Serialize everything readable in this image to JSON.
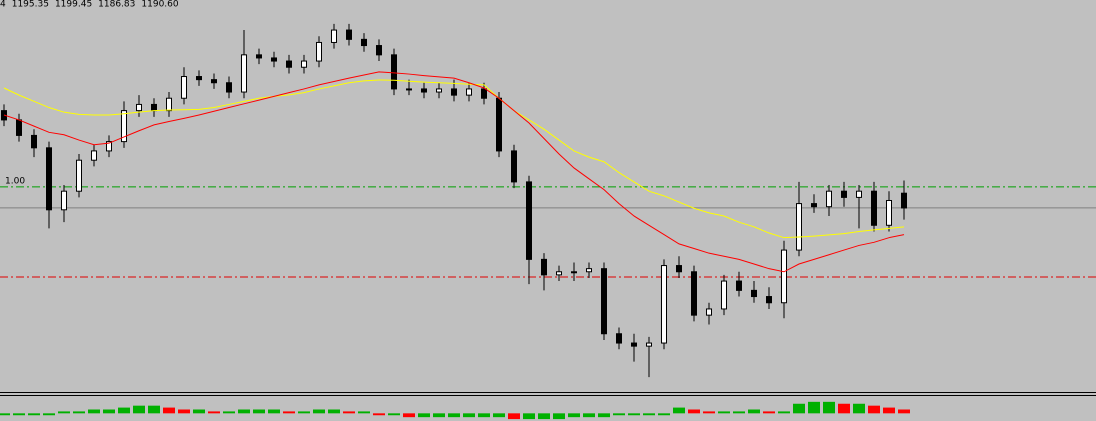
{
  "chart_data": {
    "type": "candlestick",
    "header": [
      "4",
      "1195.35",
      "1199.45",
      "1186.83",
      "1190.60"
    ],
    "ylim": [
      1131.2,
      1257.7
    ],
    "candles": {
      "open": [
        1222,
        1219,
        1214,
        1210,
        1190,
        1196,
        1206,
        1209,
        1212,
        1222,
        1224,
        1222,
        1226,
        1233,
        1232,
        1231,
        1228,
        1240,
        1239,
        1238,
        1236,
        1238,
        1244,
        1248,
        1245,
        1243,
        1240,
        1229,
        1229,
        1228,
        1229,
        1227,
        1229,
        1226,
        1209,
        1199,
        1174,
        1169,
        1170,
        1170,
        1171,
        1150,
        1147,
        1146,
        1147,
        1172,
        1170,
        1156,
        1158,
        1167,
        1164,
        1162,
        1160,
        1177,
        1192,
        1191,
        1196,
        1194,
        1196,
        1185,
        1195.35
      ],
      "high": [
        1224,
        1221,
        1216,
        1212,
        1198,
        1208,
        1211,
        1214,
        1225,
        1227,
        1226,
        1228,
        1236,
        1235,
        1234,
        1233,
        1248,
        1242,
        1241,
        1240,
        1240,
        1246,
        1250,
        1250,
        1247,
        1245,
        1242,
        1232,
        1231,
        1231,
        1232,
        1231,
        1231,
        1228,
        1211,
        1201,
        1176,
        1172,
        1173,
        1173,
        1173,
        1152,
        1150,
        1149,
        1174,
        1175,
        1172,
        1160,
        1169,
        1170,
        1167,
        1165,
        1180,
        1199,
        1195,
        1198,
        1199,
        1198,
        1199,
        1196,
        1199.45
      ],
      "low": [
        1217,
        1212,
        1207,
        1184,
        1186,
        1194,
        1204,
        1207,
        1210,
        1220,
        1220,
        1220,
        1224,
        1230,
        1229,
        1226,
        1226,
        1237,
        1236,
        1234,
        1234,
        1236,
        1242,
        1243,
        1241,
        1238,
        1227,
        1227,
        1226,
        1226,
        1225,
        1225,
        1224,
        1207,
        1197,
        1166,
        1164,
        1167,
        1167,
        1168,
        1148,
        1145,
        1141,
        1136,
        1145,
        1168,
        1154,
        1153,
        1156,
        1162,
        1160,
        1158,
        1155,
        1175,
        1189,
        1188,
        1191,
        1184,
        1183,
        1183,
        1186.83
      ],
      "close": [
        1219,
        1214,
        1210,
        1190,
        1196,
        1206,
        1209,
        1212,
        1222,
        1224,
        1222,
        1226,
        1233,
        1232,
        1231,
        1228,
        1240,
        1239,
        1238,
        1236,
        1238,
        1244,
        1248,
        1245,
        1243,
        1240,
        1229,
        1229,
        1228,
        1229,
        1227,
        1229,
        1226,
        1209,
        1199,
        1174,
        1169,
        1170,
        1170,
        1171,
        1150,
        1147,
        1146,
        1147,
        1172,
        1170,
        1156,
        1158,
        1167,
        1164,
        1162,
        1160,
        1177,
        1192,
        1191,
        1196,
        1194,
        1196,
        1185,
        1193,
        1190.6
      ]
    },
    "series": [
      {
        "color": "#ffff00",
        "values": [
          1229.3,
          1227,
          1225,
          1223,
          1221.5,
          1220.8,
          1220.6,
          1220.6,
          1221,
          1221.5,
          1222,
          1222.2,
          1222.3,
          1222.4,
          1223,
          1224,
          1225,
          1226,
          1226.6,
          1227.1,
          1227.8,
          1229,
          1230,
          1231,
          1231.6,
          1231.9,
          1231.8,
          1231.5,
          1231.2,
          1231,
          1230.8,
          1230.5,
          1230.3,
          1226,
          1222,
          1219,
          1216,
          1212.5,
          1209,
          1207,
          1205.5,
          1202,
          1199,
          1196,
          1194.5,
          1192.5,
          1190.5,
          1189,
          1188,
          1186,
          1184.5,
          1182.5,
          1181,
          1181.2,
          1181.5,
          1181.9,
          1182.3,
          1183,
          1183.5,
          1184,
          1184.5
        ]
      },
      {
        "color": "#ff0000",
        "values": [
          1220.6,
          1219,
          1217,
          1215,
          1214.2,
          1212.5,
          1211,
          1211.5,
          1213.5,
          1215.5,
          1217.4,
          1218.5,
          1219.5,
          1220.6,
          1221.8,
          1223,
          1224.2,
          1225.4,
          1226.6,
          1227.8,
          1229,
          1230.3,
          1231.4,
          1232.5,
          1233.5,
          1234.5,
          1234.2,
          1233.8,
          1233.3,
          1232.9,
          1232.5,
          1231,
          1229.3,
          1226,
          1222,
          1218,
          1213,
          1208,
          1203.5,
          1200,
          1196.5,
          1192,
          1188,
          1185,
          1182,
          1179,
          1177.5,
          1176,
          1175,
          1174,
          1172.5,
          1171,
          1170,
          1172.5,
          1174,
          1175.5,
          1177,
          1178.5,
          1179.5,
          1181,
          1182
        ]
      }
    ],
    "levels": [
      {
        "value": 1197.4,
        "color": "#00a000",
        "label": "1.00"
      },
      {
        "value": 1190.6,
        "color": "#808080"
      },
      {
        "value": 1168.3,
        "color": "#e00000"
      }
    ],
    "histogram": {
      "ylim": [
        -4,
        8
      ],
      "up_color": "#00b000",
      "down_color": "#ff0000",
      "values": [
        -1,
        -1,
        -1,
        -1,
        1,
        1,
        2,
        2,
        3,
        4,
        4,
        3,
        2,
        2,
        1,
        1,
        2,
        2,
        2,
        1,
        1,
        2,
        2,
        1,
        1,
        -1,
        -1,
        -2,
        -2,
        -2,
        -2,
        -2,
        -2,
        -2,
        -3,
        -3,
        -3,
        -3,
        -2,
        -2,
        -2,
        -1,
        -1,
        -1,
        -1,
        3,
        2,
        1,
        1,
        1,
        2,
        1,
        1,
        5,
        6,
        6,
        5,
        5,
        4,
        3,
        2
      ]
    }
  }
}
